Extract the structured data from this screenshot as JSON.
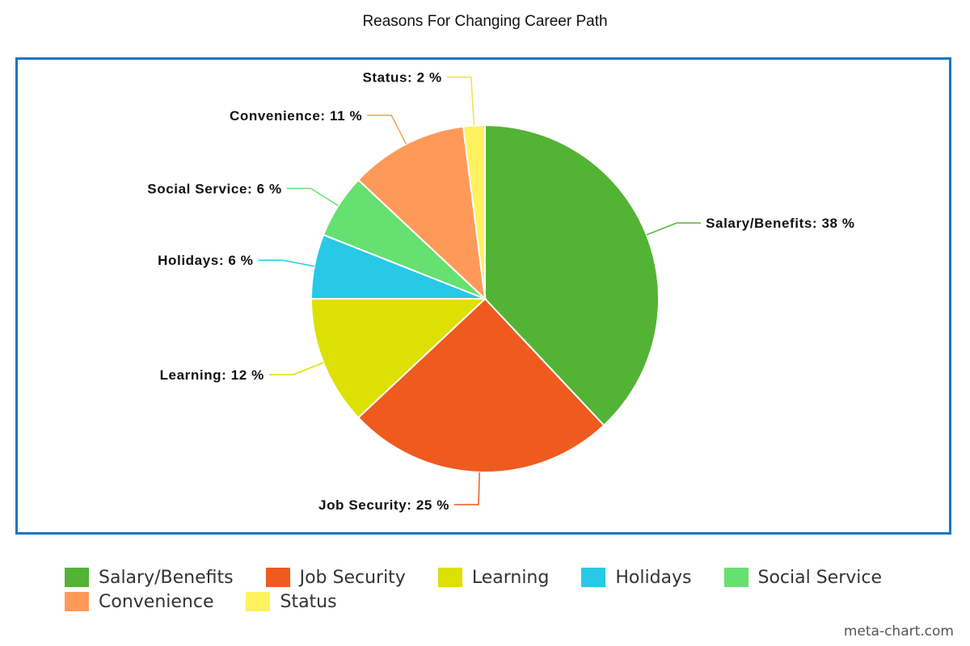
{
  "chart_data": {
    "type": "pie",
    "title": "Reasons For Changing Career Path",
    "unit": "%",
    "slices": [
      {
        "label": "Salary/Benefits",
        "value": 38,
        "color": "#52b334"
      },
      {
        "label": "Job Security",
        "value": 25,
        "color": "#ef5a1f"
      },
      {
        "label": "Learning",
        "value": 12,
        "color": "#dde000"
      },
      {
        "label": "Holidays",
        "value": 6,
        "color": "#27c9e6"
      },
      {
        "label": "Social Service",
        "value": 6,
        "color": "#66e070"
      },
      {
        "label": "Convenience",
        "value": 11,
        "color": "#ff9959"
      },
      {
        "label": "Status",
        "value": 2,
        "color": "#fff15f"
      }
    ],
    "legend_position": "bottom"
  },
  "credit": "meta-chart.com"
}
